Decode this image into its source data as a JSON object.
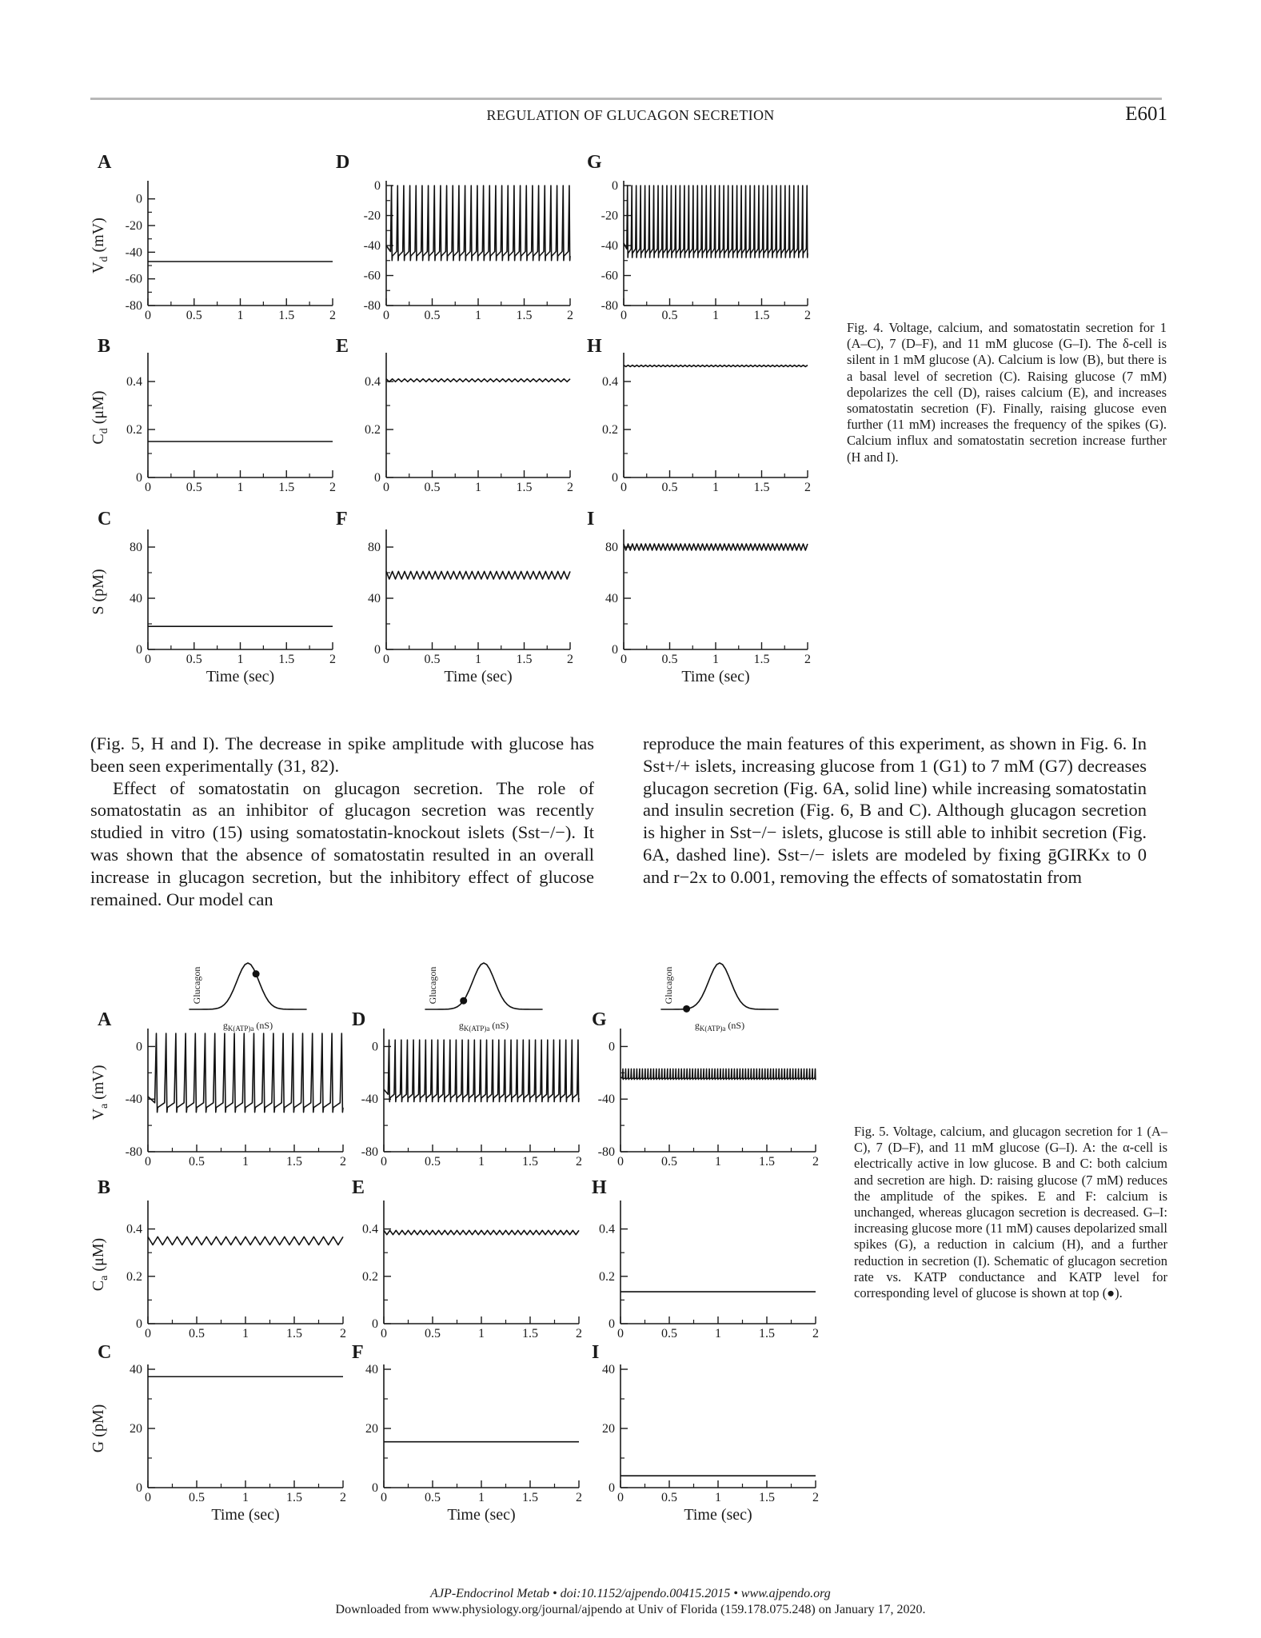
{
  "header": {
    "running_title": "REGULATION OF GLUCAGON SECRETION",
    "page_number": "E601"
  },
  "figure4": {
    "panel_letters": [
      "A",
      "D",
      "G",
      "B",
      "E",
      "H",
      "C",
      "F",
      "I"
    ],
    "row_ylabels": [
      {
        "base": "V",
        "sub": "d",
        "rest": " (mV)"
      },
      {
        "base": "C",
        "sub": "d",
        "rest": " (μM)"
      },
      {
        "base": "S",
        "sub": "",
        "rest": " (pM)"
      }
    ],
    "xlabel": "Time (sec)",
    "caption": {
      "label": "Fig. 4.",
      "text": "Voltage, calcium, and somatostatin secretion for 1 (A–C), 7 (D–F), and 11 mM glucose (G–I). The δ-cell is silent in 1 mM glucose (A). Calcium is low (B), but there is a basal level of secretion (C). Raising glucose (7 mM) depolarizes the cell (D), raises calcium (E), and increases somatostatin secretion (F). Finally, raising glucose even further (11 mM) increases the frequency of the spikes (G). Calcium influx and somatostatin secretion increase further (H and I)."
    }
  },
  "figure5": {
    "panel_letters": [
      "A",
      "D",
      "G",
      "B",
      "E",
      "H",
      "C",
      "F",
      "I"
    ],
    "row_ylabels": [
      {
        "base": "V",
        "sub": "a",
        "rest": " (mV)"
      },
      {
        "base": "C",
        "sub": "a",
        "rest": " (μM)"
      },
      {
        "base": "G",
        "sub": "",
        "rest": " (pM)"
      }
    ],
    "xlabel": "Time (sec)",
    "inset_ylabel": "Glucagon",
    "inset_xlabel": {
      "base": "g",
      "sub": "K(ATP)a",
      "rest": " (nS)"
    },
    "caption": {
      "label": "Fig. 5.",
      "text": "Voltage, calcium, and glucagon secretion for 1 (A–C), 7 (D–F), and 11 mM glucose (G–I). A: the α-cell is electrically active in low glucose. B and C: both calcium and secretion are high. D: raising glucose (7 mM) reduces the amplitude of the spikes. E and F: calcium is unchanged, whereas glucagon secretion is decreased. G–I: increasing glucose more (11 mM) causes depolarized small spikes (G), a reduction in calcium (H), and a further reduction in secretion (I). Schematic of glucagon secretion rate vs. KATP conductance and KATP level for corresponding level of glucose is shown at top (●)."
    }
  },
  "body": {
    "left_column": [
      "(Fig. 5, H and I). The decrease in spike amplitude with glucose has been seen experimentally (31, 82).",
      "Effect of somatostatin on glucagon secretion. The role of somatostatin as an inhibitor of glucagon secretion was recently studied in vitro (15) using somatostatin-knockout islets (Sst−/−). It was shown that the absence of somatostatin resulted in an overall increase in glucagon secretion, but the inhibitory effect of glucose remained. Our model can"
    ],
    "right_column": "reproduce the main features of this experiment, as shown in Fig. 6. In Sst+/+ islets, increasing glucose from 1 (G1) to 7 mM (G7) decreases glucagon secretion (Fig. 6A, solid line) while increasing somatostatin and insulin secretion (Fig. 6, B and C). Although glucagon secretion is higher in Sst−/− islets, glucose is still able to inhibit secretion (Fig. 6A, dashed line). Sst−/− islets are modeled by fixing ḡGIRKx to 0 and r−2x to 0.001, removing the effects of somatostatin from"
  },
  "footer": {
    "line1": "AJP-Endocrinol Metab • doi:10.1152/ajpendo.00415.2015 • www.ajpendo.org",
    "line2": "Downloaded from www.physiology.org/journal/ajpendo at Univ of Florida (159.178.075.248) on January 17, 2020."
  },
  "chart_data": [
    {
      "panel": "Fig4-A",
      "type": "line",
      "xlabel": "Time (sec)",
      "ylabel": "Vd (mV)",
      "xlim": [
        0,
        2
      ],
      "ylim": [
        -80,
        10
      ],
      "xticks": [
        "0",
        "0.5",
        "1",
        "1.5",
        "2"
      ],
      "yticks": [
        "0",
        "-20",
        "-40",
        "-60",
        "-80"
      ],
      "series": [
        {
          "kind": "flat",
          "level": -47
        }
      ]
    },
    {
      "panel": "Fig4-D",
      "type": "line",
      "xlabel": "Time (sec)",
      "ylabel": "",
      "xlim": [
        0,
        2
      ],
      "ylim": [
        -80,
        0
      ],
      "xticks": [
        "0",
        "0.5",
        "1",
        "1.5",
        "2"
      ],
      "yticks": [
        "0",
        "-20",
        "-40",
        "-60",
        "-80"
      ],
      "series": [
        {
          "kind": "spikes",
          "low": -50,
          "high": 0,
          "count": 30
        }
      ]
    },
    {
      "panel": "Fig4-G",
      "type": "line",
      "xlabel": "Time (sec)",
      "ylabel": "",
      "xlim": [
        0,
        2
      ],
      "ylim": [
        -80,
        0
      ],
      "xticks": [
        "0",
        "0.5",
        "1",
        "1.5",
        "2"
      ],
      "yticks": [
        "0",
        "-20",
        "-40",
        "-60",
        "-80"
      ],
      "series": [
        {
          "kind": "spikes",
          "low": -48,
          "high": 0,
          "count": 42
        }
      ]
    },
    {
      "panel": "Fig4-B",
      "type": "line",
      "xlabel": "Time (sec)",
      "ylabel": "Cd (μM)",
      "xlim": [
        0,
        2
      ],
      "ylim": [
        0,
        0.5
      ],
      "xticks": [
        "0",
        "0.5",
        "1",
        "1.5",
        "2"
      ],
      "yticks": [
        "0",
        "0.2",
        "0.4"
      ],
      "series": [
        {
          "kind": "flat",
          "level": 0.15
        }
      ]
    },
    {
      "panel": "Fig4-E",
      "type": "line",
      "xlabel": "Time (sec)",
      "ylabel": "",
      "xlim": [
        0,
        2
      ],
      "ylim": [
        0,
        0.5
      ],
      "xticks": [
        "0",
        "0.5",
        "1",
        "1.5",
        "2"
      ],
      "yticks": [
        "0",
        "0.2",
        "0.4"
      ],
      "series": [
        {
          "kind": "wave",
          "center": 0.405,
          "amp": 0.006,
          "count": 30
        }
      ]
    },
    {
      "panel": "Fig4-H",
      "type": "line",
      "xlabel": "Time (sec)",
      "ylabel": "",
      "xlim": [
        0,
        2
      ],
      "ylim": [
        0,
        0.5
      ],
      "xticks": [
        "0",
        "0.5",
        "1",
        "1.5",
        "2"
      ],
      "yticks": [
        "0",
        "0.2",
        "0.4"
      ],
      "series": [
        {
          "kind": "wave",
          "center": 0.465,
          "amp": 0.003,
          "count": 42
        }
      ]
    },
    {
      "panel": "Fig4-C",
      "type": "line",
      "xlabel": "Time (sec)",
      "ylabel": "S (pM)",
      "xlim": [
        0,
        2
      ],
      "ylim": [
        0,
        90
      ],
      "xticks": [
        "0",
        "0.5",
        "1",
        "1.5",
        "2"
      ],
      "yticks": [
        "0",
        "40",
        "80"
      ],
      "series": [
        {
          "kind": "flat",
          "level": 18
        }
      ]
    },
    {
      "panel": "Fig4-F",
      "type": "line",
      "xlabel": "Time (sec)",
      "ylabel": "",
      "xlim": [
        0,
        2
      ],
      "ylim": [
        0,
        90
      ],
      "xticks": [
        "0",
        "0.5",
        "1",
        "1.5",
        "2"
      ],
      "yticks": [
        "0",
        "40",
        "80"
      ],
      "series": [
        {
          "kind": "wave",
          "center": 58,
          "amp": 3,
          "count": 30
        }
      ]
    },
    {
      "panel": "Fig4-I",
      "type": "line",
      "xlabel": "Time (sec)",
      "ylabel": "",
      "xlim": [
        0,
        2
      ],
      "ylim": [
        0,
        90
      ],
      "xticks": [
        "0",
        "0.5",
        "1",
        "1.5",
        "2"
      ],
      "yticks": [
        "0",
        "40",
        "80"
      ],
      "series": [
        {
          "kind": "wave",
          "center": 80,
          "amp": 2.5,
          "count": 42
        }
      ]
    },
    {
      "panel": "Fig5-A",
      "type": "line",
      "xlabel": "Time (sec)",
      "ylabel": "Va (mV)",
      "xlim": [
        0,
        2
      ],
      "ylim": [
        -80,
        10
      ],
      "xticks": [
        "0",
        "0.5",
        "1",
        "1.5",
        "2"
      ],
      "yticks": [
        "0",
        "-40",
        "-80"
      ],
      "series": [
        {
          "kind": "spikes",
          "low": -50,
          "high": 10,
          "count": 20
        }
      ]
    },
    {
      "panel": "Fig5-D",
      "type": "line",
      "xlabel": "Time (sec)",
      "ylabel": "",
      "xlim": [
        0,
        2
      ],
      "ylim": [
        -80,
        10
      ],
      "xticks": [
        "0",
        "0.5",
        "1",
        "1.5",
        "2"
      ],
      "yticks": [
        "0",
        "-40",
        "-80"
      ],
      "series": [
        {
          "kind": "spikes",
          "low": -42,
          "high": 5,
          "count": 32
        }
      ]
    },
    {
      "panel": "Fig5-G",
      "type": "line",
      "xlabel": "Time (sec)",
      "ylabel": "",
      "xlim": [
        0,
        2
      ],
      "ylim": [
        -80,
        10
      ],
      "xticks": [
        "0",
        "0.5",
        "1",
        "1.5",
        "2"
      ],
      "yticks": [
        "0",
        "-40",
        "-80"
      ],
      "series": [
        {
          "kind": "spikes",
          "low": -25,
          "high": -17,
          "count": 70
        }
      ]
    },
    {
      "panel": "Fig5-B",
      "type": "line",
      "xlabel": "Time (sec)",
      "ylabel": "Ca (μM)",
      "xlim": [
        0,
        2
      ],
      "ylim": [
        0,
        0.5
      ],
      "xticks": [
        "0",
        "0.5",
        "1",
        "1.5",
        "2"
      ],
      "yticks": [
        "0",
        "0.2",
        "0.4"
      ],
      "series": [
        {
          "kind": "wave",
          "center": 0.35,
          "amp": 0.017,
          "count": 20
        }
      ]
    },
    {
      "panel": "Fig5-E",
      "type": "line",
      "xlabel": "Time (sec)",
      "ylabel": "",
      "xlim": [
        0,
        2
      ],
      "ylim": [
        0,
        0.5
      ],
      "xticks": [
        "0",
        "0.5",
        "1",
        "1.5",
        "2"
      ],
      "yticks": [
        "0",
        "0.2",
        "0.4"
      ],
      "series": [
        {
          "kind": "wave",
          "center": 0.385,
          "amp": 0.009,
          "count": 32
        }
      ]
    },
    {
      "panel": "Fig5-H",
      "type": "line",
      "xlabel": "Time (sec)",
      "ylabel": "",
      "xlim": [
        0,
        2
      ],
      "ylim": [
        0,
        0.5
      ],
      "xticks": [
        "0",
        "0.5",
        "1",
        "1.5",
        "2"
      ],
      "yticks": [
        "0",
        "0.2",
        "0.4"
      ],
      "series": [
        {
          "kind": "flat",
          "level": 0.135
        }
      ]
    },
    {
      "panel": "Fig5-C",
      "type": "line",
      "xlabel": "Time (sec)",
      "ylabel": "G (pM)",
      "xlim": [
        0,
        2
      ],
      "ylim": [
        0,
        40
      ],
      "xticks": [
        "0",
        "0.5",
        "1",
        "1.5",
        "2"
      ],
      "yticks": [
        "0",
        "20",
        "40"
      ],
      "series": [
        {
          "kind": "flat",
          "level": 37.5
        }
      ]
    },
    {
      "panel": "Fig5-F",
      "type": "line",
      "xlabel": "Time (sec)",
      "ylabel": "",
      "xlim": [
        0,
        2
      ],
      "ylim": [
        0,
        40
      ],
      "xticks": [
        "0",
        "0.5",
        "1",
        "1.5",
        "2"
      ],
      "yticks": [
        "0",
        "20",
        "40"
      ],
      "series": [
        {
          "kind": "flat",
          "level": 15.5
        }
      ]
    },
    {
      "panel": "Fig5-I",
      "type": "line",
      "xlabel": "Time (sec)",
      "ylabel": "",
      "xlim": [
        0,
        2
      ],
      "ylim": [
        0,
        40
      ],
      "xticks": [
        "0",
        "0.5",
        "1",
        "1.5",
        "2"
      ],
      "yticks": [
        "0",
        "20",
        "40"
      ],
      "series": [
        {
          "kind": "flat",
          "level": 4
        }
      ]
    },
    {
      "panel": "Fig5-inset-A",
      "type": "line",
      "ylabel": "Glucagon",
      "xlabel": "gK(ATP)a (nS)",
      "series": [
        {
          "kind": "bell",
          "marker_at": 0.22
        }
      ]
    },
    {
      "panel": "Fig5-inset-D",
      "type": "line",
      "ylabel": "Glucagon",
      "xlabel": "gK(ATP)a (nS)",
      "series": [
        {
          "kind": "bell",
          "marker_at": -0.55
        }
      ]
    },
    {
      "panel": "Fig5-inset-G",
      "type": "line",
      "ylabel": "Glucagon",
      "xlabel": "gK(ATP)a (nS)",
      "series": [
        {
          "kind": "bell",
          "marker_at": -0.9
        }
      ]
    }
  ]
}
